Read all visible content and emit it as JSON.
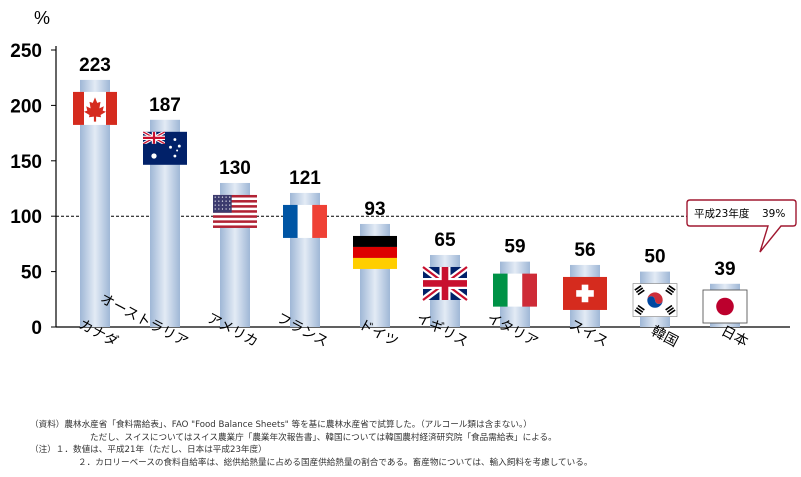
{
  "chart_data": {
    "type": "bar",
    "ylabel": "%",
    "ylim": [
      0,
      250
    ],
    "yticks": [
      0,
      50,
      100,
      150,
      200,
      250
    ],
    "reference_line": 100,
    "categories": [
      "カナダ",
      "オーストラリア",
      "アメリカ",
      "フランス",
      "ドイツ",
      "イギリス",
      "イタリア",
      "スイス",
      "韓国",
      "日本"
    ],
    "values": [
      223,
      187,
      130,
      121,
      93,
      65,
      59,
      56,
      50,
      39
    ],
    "flags": [
      "canada-flag-icon",
      "australia-flag-icon",
      "usa-flag-icon",
      "france-flag-icon",
      "germany-flag-icon",
      "uk-flag-icon",
      "italy-flag-icon",
      "switzerland-flag-icon",
      "korea-flag-icon",
      "japan-flag-icon"
    ],
    "callout": {
      "label": "平成23年度",
      "value": "39%"
    },
    "colors": {
      "bar_light": "#dce6f2",
      "bar_mid": "#a9c0dc",
      "red": "#d52b1e",
      "blue": "#012169"
    }
  },
  "notes": [
    "（資料）農林水産省「食料需給表」、FAO \"Food Balance Sheets\" 等を基に農林水産省で試算した。（アルコール類は含まない。）",
    "ただし、スイスについてはスイス農業庁「農業年次報告書」、韓国については韓国農村経済研究院「食品需給表」による。",
    "（注）１．数値は、平成21年（ただし、日本は平成23年度）",
    "２．カロリーベースの食料自給率は、総供給熱量に占める国産供給熱量の割合である。畜産物については、輸入飼料を考慮している。"
  ]
}
